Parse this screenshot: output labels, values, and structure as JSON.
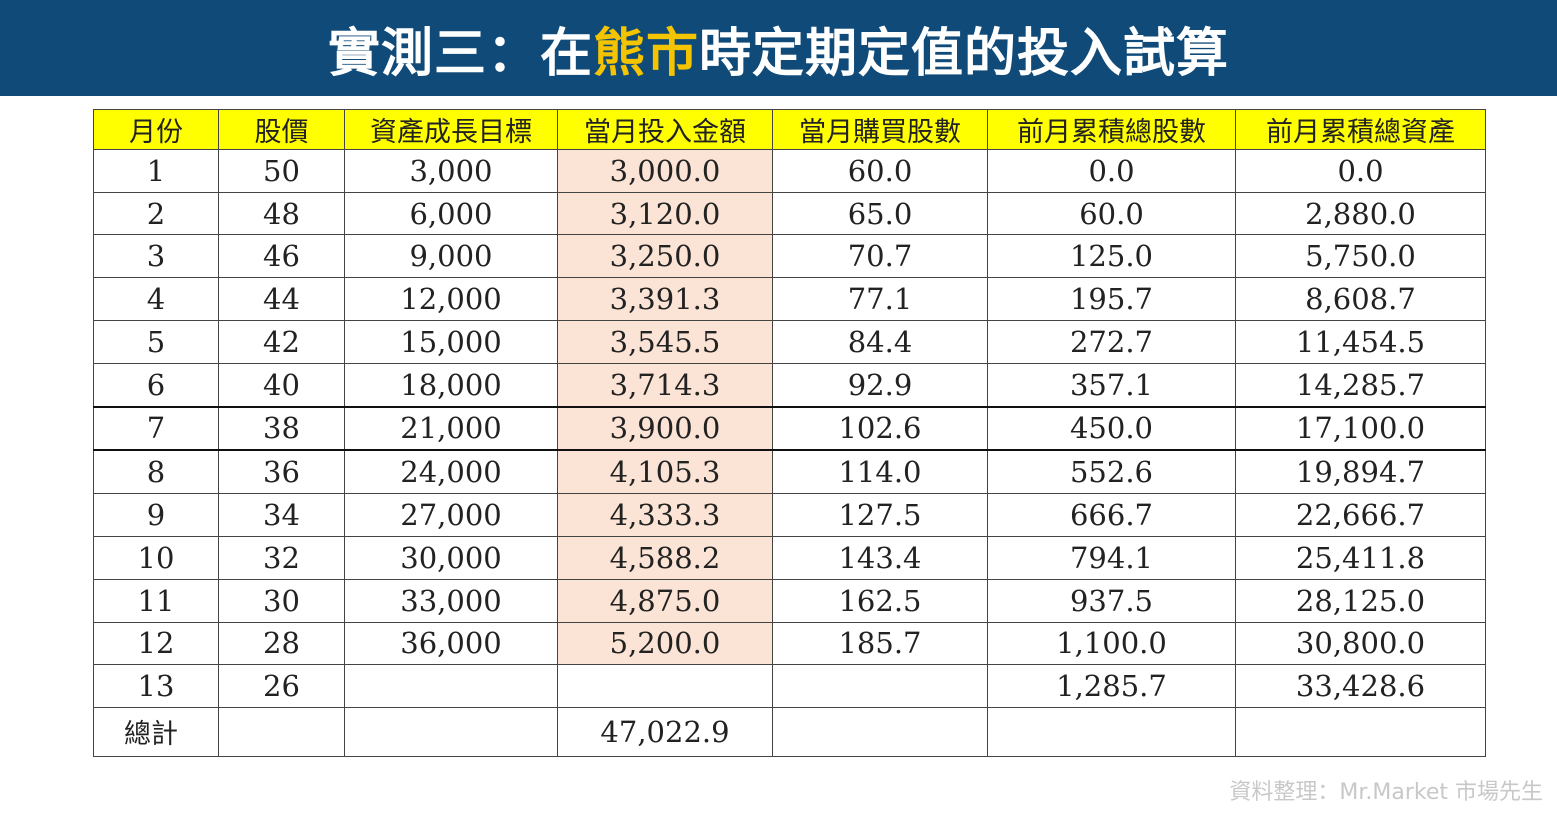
{
  "title": {
    "prefix": "實測三：在",
    "highlight": "熊市",
    "suffix": "時定期定值的投入試算"
  },
  "table": {
    "headers": [
      "月份",
      "股價",
      "資產成長目標",
      "當月投入金額",
      "當月購買股數",
      "前月累積總股數",
      "前月累積總資產"
    ],
    "rows": [
      [
        "1",
        "50",
        "3,000",
        "3,000.0",
        "60.0",
        "0.0",
        "0.0"
      ],
      [
        "2",
        "48",
        "6,000",
        "3,120.0",
        "65.0",
        "60.0",
        "2,880.0"
      ],
      [
        "3",
        "46",
        "9,000",
        "3,250.0",
        "70.7",
        "125.0",
        "5,750.0"
      ],
      [
        "4",
        "44",
        "12,000",
        "3,391.3",
        "77.1",
        "195.7",
        "8,608.7"
      ],
      [
        "5",
        "42",
        "15,000",
        "3,545.5",
        "84.4",
        "272.7",
        "11,454.5"
      ],
      [
        "6",
        "40",
        "18,000",
        "3,714.3",
        "92.9",
        "357.1",
        "14,285.7"
      ],
      [
        "7",
        "38",
        "21,000",
        "3,900.0",
        "102.6",
        "450.0",
        "17,100.0"
      ],
      [
        "8",
        "36",
        "24,000",
        "4,105.3",
        "114.0",
        "552.6",
        "19,894.7"
      ],
      [
        "9",
        "34",
        "27,000",
        "4,333.3",
        "127.5",
        "666.7",
        "22,666.7"
      ],
      [
        "10",
        "32",
        "30,000",
        "4,588.2",
        "143.4",
        "794.1",
        "25,411.8"
      ],
      [
        "11",
        "30",
        "33,000",
        "4,875.0",
        "162.5",
        "937.5",
        "28,125.0"
      ],
      [
        "12",
        "28",
        "36,000",
        "5,200.0",
        "185.7",
        "1,100.0",
        "30,800.0"
      ],
      [
        "13",
        "26",
        "",
        "",
        "",
        "1,285.7",
        "33,428.6"
      ]
    ],
    "total_label": "總計",
    "total_value": "47,022.9"
  },
  "credit": "資料整理：Mr.Market 市場先生",
  "colors": {
    "title_bg": "#0f4a78",
    "title_highlight": "#f5c400",
    "header_bg": "#ffff00",
    "amount_column_bg": "#fbe4d5"
  }
}
